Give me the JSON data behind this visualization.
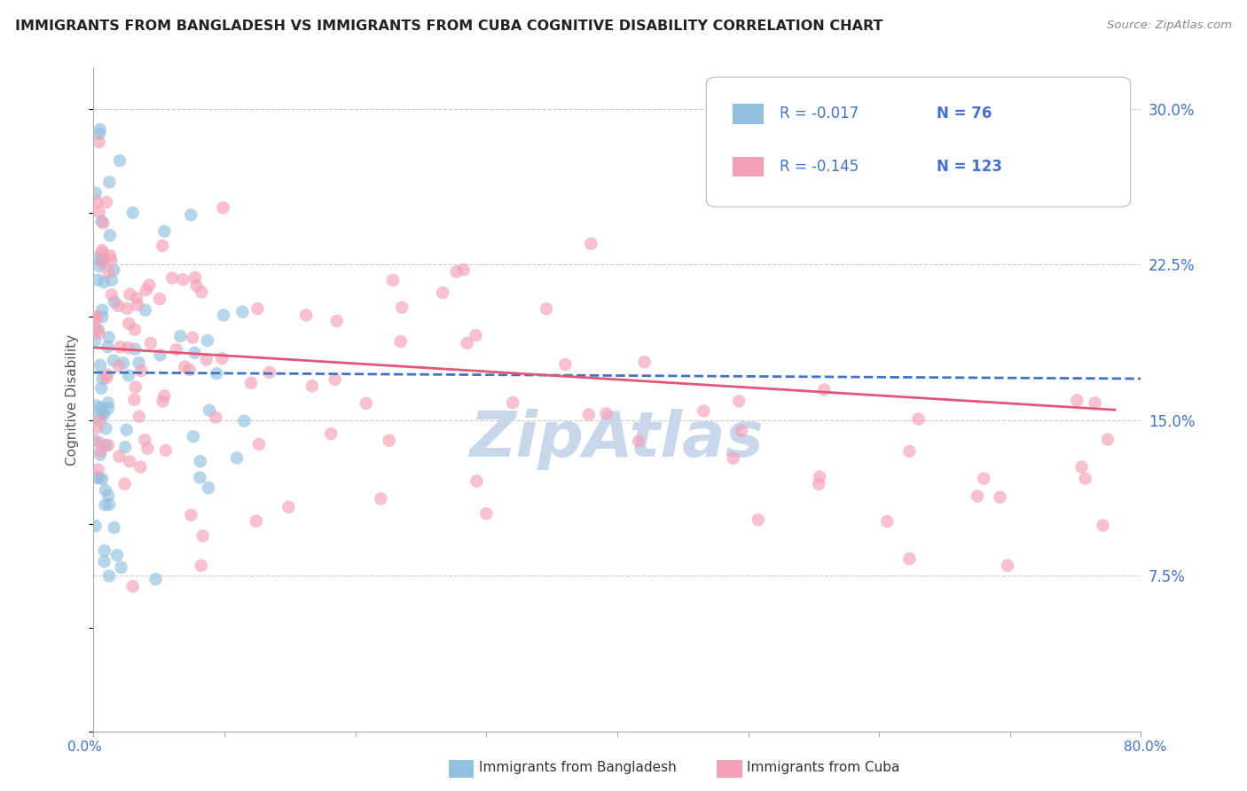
{
  "title": "IMMIGRANTS FROM BANGLADESH VS IMMIGRANTS FROM CUBA COGNITIVE DISABILITY CORRELATION CHART",
  "source": "Source: ZipAtlas.com",
  "ylabel": "Cognitive Disability",
  "ytick_labels": [
    "30.0%",
    "22.5%",
    "15.0%",
    "7.5%"
  ],
  "ytick_values": [
    0.3,
    0.225,
    0.15,
    0.075
  ],
  "xmin": 0.0,
  "xmax": 0.8,
  "ymin": 0.0,
  "ymax": 0.32,
  "legend_entries": [
    {
      "label": "Immigrants from Bangladesh",
      "R": "-0.017",
      "N": "76"
    },
    {
      "label": "Immigrants from Cuba",
      "R": "-0.145",
      "N": "123"
    }
  ],
  "bangladesh_color": "#92c0e0",
  "cuba_color": "#f4a0b8",
  "bangladesh_line_color": "#4472c4",
  "cuba_line_color": "#e05878",
  "grid_color": "#cccccc",
  "watermark_text": "ZipAtlas",
  "watermark_color": "#c8d8ea",
  "title_color": "#222222",
  "source_color": "#888888",
  "axis_label_color": "#4472c4",
  "text_color_blue": "#4472c4",
  "text_color_pink": "#e05878"
}
